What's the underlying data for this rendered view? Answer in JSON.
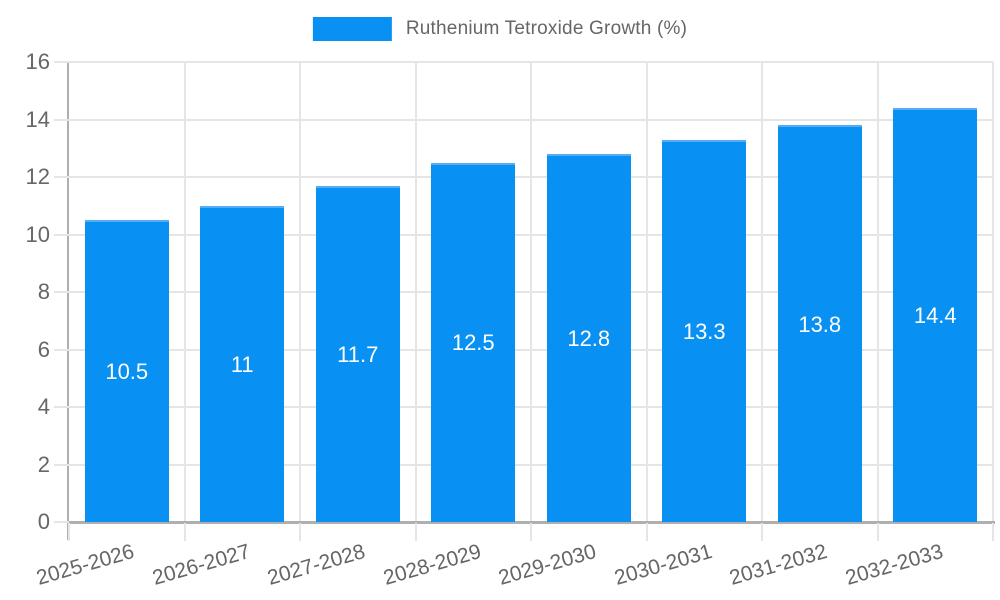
{
  "chart_data": {
    "type": "bar",
    "title": "Ruthenium Tetroxide Growth (%)",
    "legend_position": "top",
    "categories": [
      "2025-2026",
      "2026-2027",
      "2027-2028",
      "2028-2029",
      "2029-2030",
      "2030-2031",
      "2031-2032",
      "2032-2033"
    ],
    "series": [
      {
        "name": "Ruthenium Tetroxide Growth (%)",
        "values": [
          10.5,
          11,
          11.7,
          12.5,
          12.8,
          13.3,
          13.8,
          14.4
        ]
      }
    ],
    "value_labels": [
      "10.5",
      "11",
      "11.7",
      "12.5",
      "12.8",
      "13.3",
      "13.8",
      "14.4"
    ],
    "xlabel": "",
    "ylabel": "",
    "ylim": [
      0,
      16
    ],
    "yticks": [
      0,
      2,
      4,
      6,
      8,
      10,
      12,
      14,
      16
    ],
    "grid": true,
    "x_tick_rotation_deg": -16
  },
  "colors": {
    "bar_fill": "#0890F2",
    "bar_edge": "#55ADF6",
    "bar_value_text": "#FFFFFF",
    "axis_text": "#666666",
    "grid_line": "#E5E5E5",
    "axis_line": "#AFAFAF",
    "background": "#FFFFFF"
  }
}
